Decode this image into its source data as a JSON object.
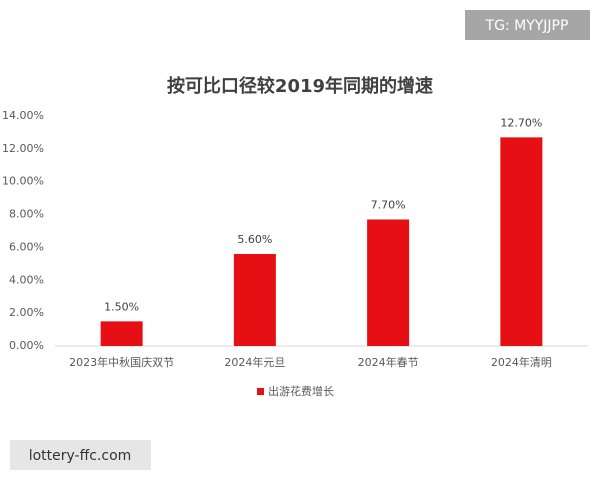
{
  "chart_data": {
    "type": "bar",
    "title": "按可比口径较2019年同期的增速",
    "categories": [
      "2023年中秋国庆双节",
      "2024年元旦",
      "2024年春节",
      "2024年清明"
    ],
    "series": [
      {
        "name": "出游花费增长",
        "color": "#e60f14",
        "values": [
          1.5,
          5.6,
          7.7,
          12.7
        ],
        "value_labels": [
          "1.50%",
          "5.60%",
          "7.70%",
          "12.70%"
        ]
      }
    ],
    "ylim": [
      0,
      14
    ],
    "yticks": [
      {
        "value": 0,
        "label": "0.00%"
      },
      {
        "value": 2,
        "label": "2.00%"
      },
      {
        "value": 4,
        "label": "4.00%"
      },
      {
        "value": 6,
        "label": "6.00%"
      },
      {
        "value": 8,
        "label": "8.00%"
      },
      {
        "value": 10,
        "label": "10.00%"
      },
      {
        "value": 12,
        "label": "12.00%"
      },
      {
        "value": 14,
        "label": "14.00%"
      }
    ],
    "grid": false,
    "legend": "bottom"
  },
  "watermarks": [
    "TG: MYYJJPP",
    "lottery-ffc.com"
  ]
}
